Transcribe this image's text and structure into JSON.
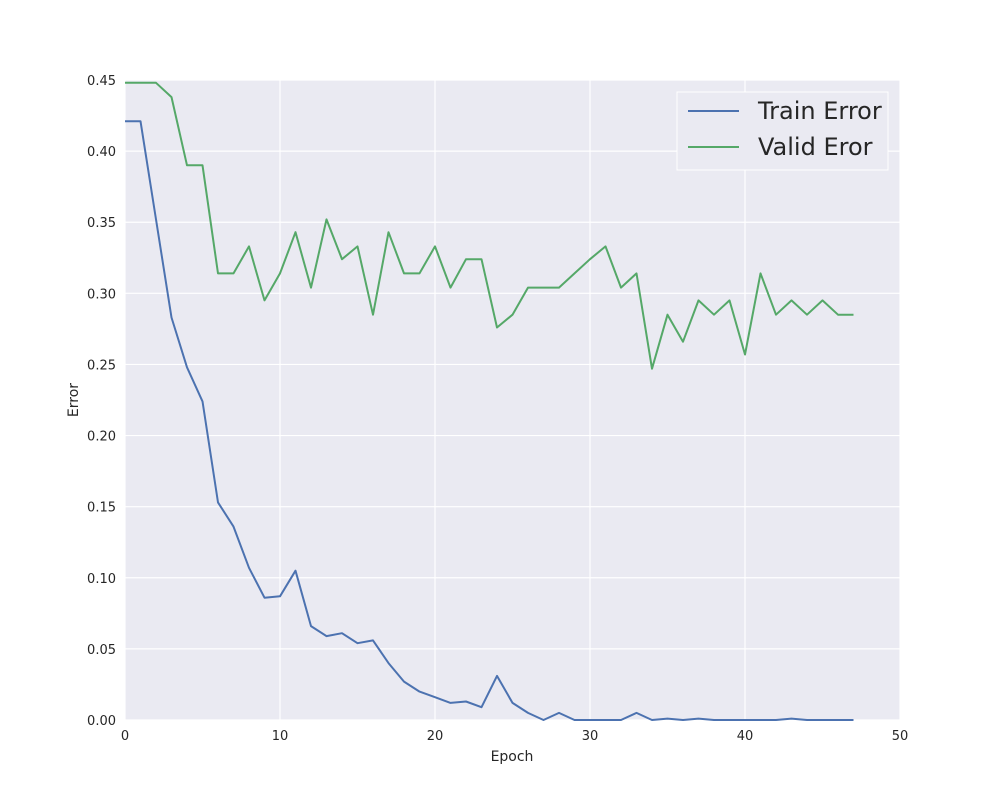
{
  "chart_data": {
    "type": "line",
    "title": "",
    "xlabel": "Epoch",
    "ylabel": "Error",
    "xlim": [
      0,
      50
    ],
    "ylim": [
      0,
      0.45
    ],
    "xticks": [
      0,
      10,
      20,
      30,
      40,
      50
    ],
    "yticks": [
      0.0,
      0.05,
      0.1,
      0.15,
      0.2,
      0.25,
      0.3,
      0.35,
      0.4,
      0.45
    ],
    "ytick_format": 2,
    "grid": true,
    "legend_position": "top-right",
    "series": [
      {
        "name": "Train Error",
        "color": "#4c72b0",
        "x": [
          0,
          1,
          2,
          3,
          4,
          5,
          6,
          7,
          8,
          9,
          10,
          11,
          12,
          13,
          14,
          15,
          16,
          17,
          18,
          19,
          20,
          21,
          22,
          23,
          24,
          25,
          26,
          27,
          28,
          29,
          30,
          31,
          32,
          33,
          34,
          35,
          36,
          37,
          38,
          39,
          40,
          41,
          42,
          43,
          44,
          45,
          46,
          47
        ],
        "values": [
          0.421,
          0.421,
          0.352,
          0.283,
          0.248,
          0.224,
          0.153,
          0.136,
          0.107,
          0.086,
          0.087,
          0.105,
          0.066,
          0.059,
          0.061,
          0.054,
          0.056,
          0.04,
          0.027,
          0.02,
          0.016,
          0.012,
          0.013,
          0.009,
          0.031,
          0.012,
          0.005,
          0.0,
          0.005,
          0.0,
          0.0,
          0.0,
          0.0,
          0.005,
          0.0,
          0.001,
          0.0,
          0.001,
          0.0,
          0.0,
          0.0,
          0.0,
          0.0,
          0.001,
          0.0,
          0.0,
          0.0,
          0.0
        ]
      },
      {
        "name": "Valid Eror",
        "color": "#55a868",
        "x": [
          0,
          1,
          2,
          3,
          4,
          5,
          6,
          7,
          8,
          9,
          10,
          11,
          12,
          13,
          14,
          15,
          16,
          17,
          18,
          19,
          20,
          21,
          22,
          23,
          24,
          25,
          26,
          27,
          28,
          29,
          30,
          31,
          32,
          33,
          34,
          35,
          36,
          37,
          38,
          39,
          40,
          41,
          42,
          43,
          44,
          45,
          46,
          47
        ],
        "values": [
          0.448,
          0.448,
          0.448,
          0.438,
          0.39,
          0.39,
          0.314,
          0.314,
          0.333,
          0.295,
          0.314,
          0.343,
          0.304,
          0.352,
          0.324,
          0.333,
          0.285,
          0.343,
          0.314,
          0.314,
          0.333,
          0.304,
          0.324,
          0.324,
          0.276,
          0.285,
          0.304,
          0.304,
          0.304,
          0.314,
          0.324,
          0.333,
          0.304,
          0.314,
          0.247,
          0.285,
          0.266,
          0.295,
          0.285,
          0.295,
          0.257,
          0.314,
          0.285,
          0.295,
          0.285,
          0.295,
          0.285,
          0.285
        ]
      }
    ]
  }
}
